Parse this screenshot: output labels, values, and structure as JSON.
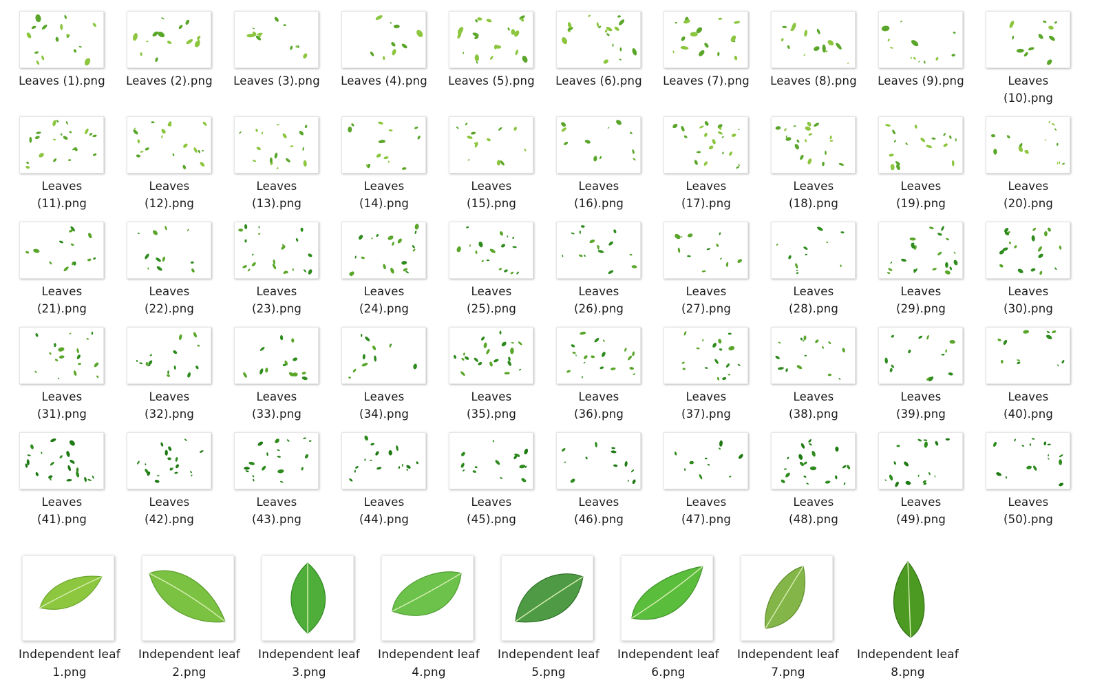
{
  "files": [
    {
      "label": "Leaves  (1).png"
    },
    {
      "label": "Leaves  (2).png"
    },
    {
      "label": "Leaves  (3).png"
    },
    {
      "label": "Leaves  (4).png"
    },
    {
      "label": "Leaves  (5).png"
    },
    {
      "label": "Leaves  (6).png"
    },
    {
      "label": "Leaves  (7).png"
    },
    {
      "label": "Leaves  (8).png"
    },
    {
      "label": "Leaves  (9).png"
    },
    {
      "label": "Leaves\n(10).png"
    },
    {
      "label": "Leaves\n(11).png"
    },
    {
      "label": "Leaves\n(12).png"
    },
    {
      "label": "Leaves\n(13).png"
    },
    {
      "label": "Leaves\n(14).png"
    },
    {
      "label": "Leaves\n(15).png"
    },
    {
      "label": "Leaves\n(16).png"
    },
    {
      "label": "Leaves\n(17).png"
    },
    {
      "label": "Leaves\n(18).png"
    },
    {
      "label": "Leaves\n(19).png"
    },
    {
      "label": "Leaves\n(20).png"
    },
    {
      "label": "Leaves\n(21).png"
    },
    {
      "label": "Leaves\n(22).png"
    },
    {
      "label": "Leaves\n(23).png"
    },
    {
      "label": "Leaves\n(24).png"
    },
    {
      "label": "Leaves\n(25).png"
    },
    {
      "label": "Leaves\n(26).png"
    },
    {
      "label": "Leaves\n(27).png"
    },
    {
      "label": "Leaves\n(28).png"
    },
    {
      "label": "Leaves\n(29).png"
    },
    {
      "label": "Leaves\n(30).png"
    },
    {
      "label": "Leaves\n(31).png"
    },
    {
      "label": "Leaves\n(32).png"
    },
    {
      "label": "Leaves\n(33).png"
    },
    {
      "label": "Leaves\n(34).png"
    },
    {
      "label": "Leaves\n(35).png"
    },
    {
      "label": "Leaves\n(36).png"
    },
    {
      "label": "Leaves\n(37).png"
    },
    {
      "label": "Leaves\n(38).png"
    },
    {
      "label": "Leaves\n(39).png"
    },
    {
      "label": "Leaves\n(40).png"
    },
    {
      "label": "Leaves\n(41).png"
    },
    {
      "label": "Leaves\n(42).png"
    },
    {
      "label": "Leaves\n(43).png"
    },
    {
      "label": "Leaves\n(44).png"
    },
    {
      "label": "Leaves\n(45).png"
    },
    {
      "label": "Leaves\n(46).png"
    },
    {
      "label": "Leaves\n(47).png"
    },
    {
      "label": "Leaves\n(48).png"
    },
    {
      "label": "Leaves\n(49).png"
    },
    {
      "label": "Leaves\n(50).png"
    }
  ],
  "independent": [
    {
      "line1": "Independent leaf",
      "line2": "1.png"
    },
    {
      "line1": "Independent leaf",
      "line2": "2.png"
    },
    {
      "line1": "Independent leaf",
      "line2": "3.png"
    },
    {
      "line1": "Independent leaf",
      "line2": "4.png"
    },
    {
      "line1": "Independent leaf",
      "line2": "5.png"
    },
    {
      "line1": "Independent leaf",
      "line2": "6.png"
    },
    {
      "line1": "Independent leaf",
      "line2": "7.png"
    },
    {
      "line1": "Independent leaf",
      "line2": "8.png"
    }
  ],
  "colors": {
    "leaf_light": "#8cc63f",
    "leaf_mid": "#5aa62a",
    "leaf_dark": "#2e8b1e",
    "vein": "#d9efb5"
  },
  "icons": {
    "thumbnail": "image-thumbnail-icon",
    "leaf": "leaf-icon"
  }
}
